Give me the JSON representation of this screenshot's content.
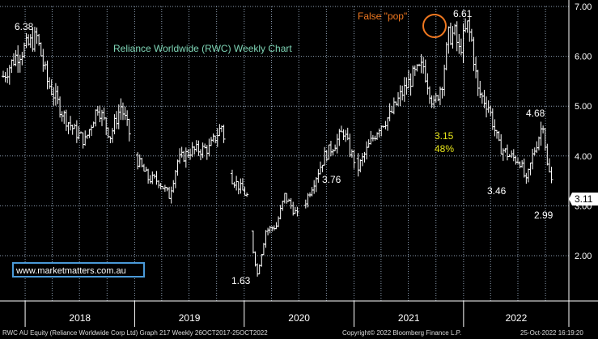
{
  "chart_data": {
    "type": "ohlc",
    "title": "Reliance Worldwide (RWC) Weekly Chart",
    "website": "www.marketmatters.com.au",
    "x_labels": [
      "2018",
      "2019",
      "2020",
      "2021",
      "2022"
    ],
    "y_ticks": [
      "7.00",
      "6.00",
      "5.00",
      "4.00",
      "3.00",
      "2.00"
    ],
    "ylim": [
      1.3,
      7.1
    ],
    "last_price": "3.11",
    "series_anchors": [
      [
        "2017-10-20",
        5.6
      ],
      [
        "2017-12-01",
        6.0
      ],
      [
        "2018-02-09",
        6.38
      ],
      [
        "2018-03-16",
        5.5
      ],
      [
        "2018-05-11",
        4.8
      ],
      [
        "2018-06-15",
        4.5
      ],
      [
        "2018-07-20",
        4.3
      ],
      [
        "2018-08-31",
        5.0
      ],
      [
        "2018-10-12",
        4.4
      ],
      [
        "2018-11-16",
        5.0
      ],
      [
        "2018-12-07",
        4.6
      ],
      [
        "2019-01-11",
        3.9
      ],
      [
        "2019-02-15",
        3.55
      ],
      [
        "2019-03-22",
        3.5
      ],
      [
        "2019-04-26",
        3.2
      ],
      [
        "2019-05-24",
        3.9
      ],
      [
        "2019-07-05",
        4.1
      ],
      [
        "2019-09-06",
        4.15
      ],
      [
        "2019-10-18",
        4.6
      ],
      [
        "2019-11-22",
        3.55
      ],
      [
        "2020-01-10",
        3.2
      ],
      [
        "2020-01-31",
        2.1
      ],
      [
        "2020-02-14",
        1.63
      ],
      [
        "2020-03-13",
        2.5
      ],
      [
        "2020-04-17",
        2.6
      ],
      [
        "2020-05-15",
        3.2
      ],
      [
        "2020-06-26",
        2.8
      ],
      [
        "2020-07-24",
        3.1
      ],
      [
        "2020-08-21",
        3.5
      ],
      [
        "2020-09-25",
        4.0
      ],
      [
        "2020-10-23",
        4.2
      ],
      [
        "2020-11-27",
        4.5
      ],
      [
        "2020-12-18",
        4.1
      ],
      [
        "2021-01-15",
        3.76
      ],
      [
        "2021-02-19",
        4.2
      ],
      [
        "2021-03-26",
        4.6
      ],
      [
        "2021-04-30",
        4.8
      ],
      [
        "2021-06-04",
        5.2
      ],
      [
        "2021-07-16",
        5.6
      ],
      [
        "2021-08-20",
        5.8
      ],
      [
        "2021-09-24",
        5.0
      ],
      [
        "2021-10-22",
        5.5
      ],
      [
        "2021-11-12",
        6.4
      ],
      [
        "2021-12-03",
        6.45
      ],
      [
        "2021-12-17",
        6.1
      ],
      [
        "2022-01-14",
        6.61
      ],
      [
        "2022-01-28",
        6.3
      ],
      [
        "2022-02-18",
        5.3
      ],
      [
        "2022-03-25",
        5.0
      ],
      [
        "2022-04-29",
        4.2
      ],
      [
        "2022-06-03",
        4.0
      ],
      [
        "2022-07-08",
        3.9
      ],
      [
        "2022-07-29",
        3.46
      ],
      [
        "2022-08-19",
        4.0
      ],
      [
        "2022-09-09",
        4.4
      ],
      [
        "2022-09-23",
        4.68
      ],
      [
        "2022-10-07",
        3.8
      ],
      [
        "2022-10-21",
        3.5
      ],
      [
        "2022-10-25",
        3.05
      ]
    ],
    "annotations": {
      "high_2018": "6.38",
      "low_2020": "1.63",
      "low_2021": "3.76",
      "peak": "6.61",
      "false_pop": "False \"pop\"",
      "drop_value": "3.15",
      "drop_pct": "48%",
      "low_2022": "3.46",
      "high_2022": "4.68",
      "current_low": "2.99"
    },
    "colors": {
      "background": "#000000",
      "grid": "#8fa0b4",
      "bars": "#ffffff",
      "title": "#7fd6b7",
      "false_pop": "#f07820",
      "drop_labels": "#e8e61a",
      "website_box": "#4a9ad8",
      "website_text": "#ffffff",
      "axis_text": "#ffffff"
    }
  },
  "footer": {
    "left": "RWC AU Equity (Reliance Worldwide Corp Ltd) Graph 217  Weekly 26OCT2017-25OCT2022",
    "middle": "Copyright© 2022 Bloomberg Finance L.P.",
    "right": "25-Oct-2022  16:19:20"
  }
}
